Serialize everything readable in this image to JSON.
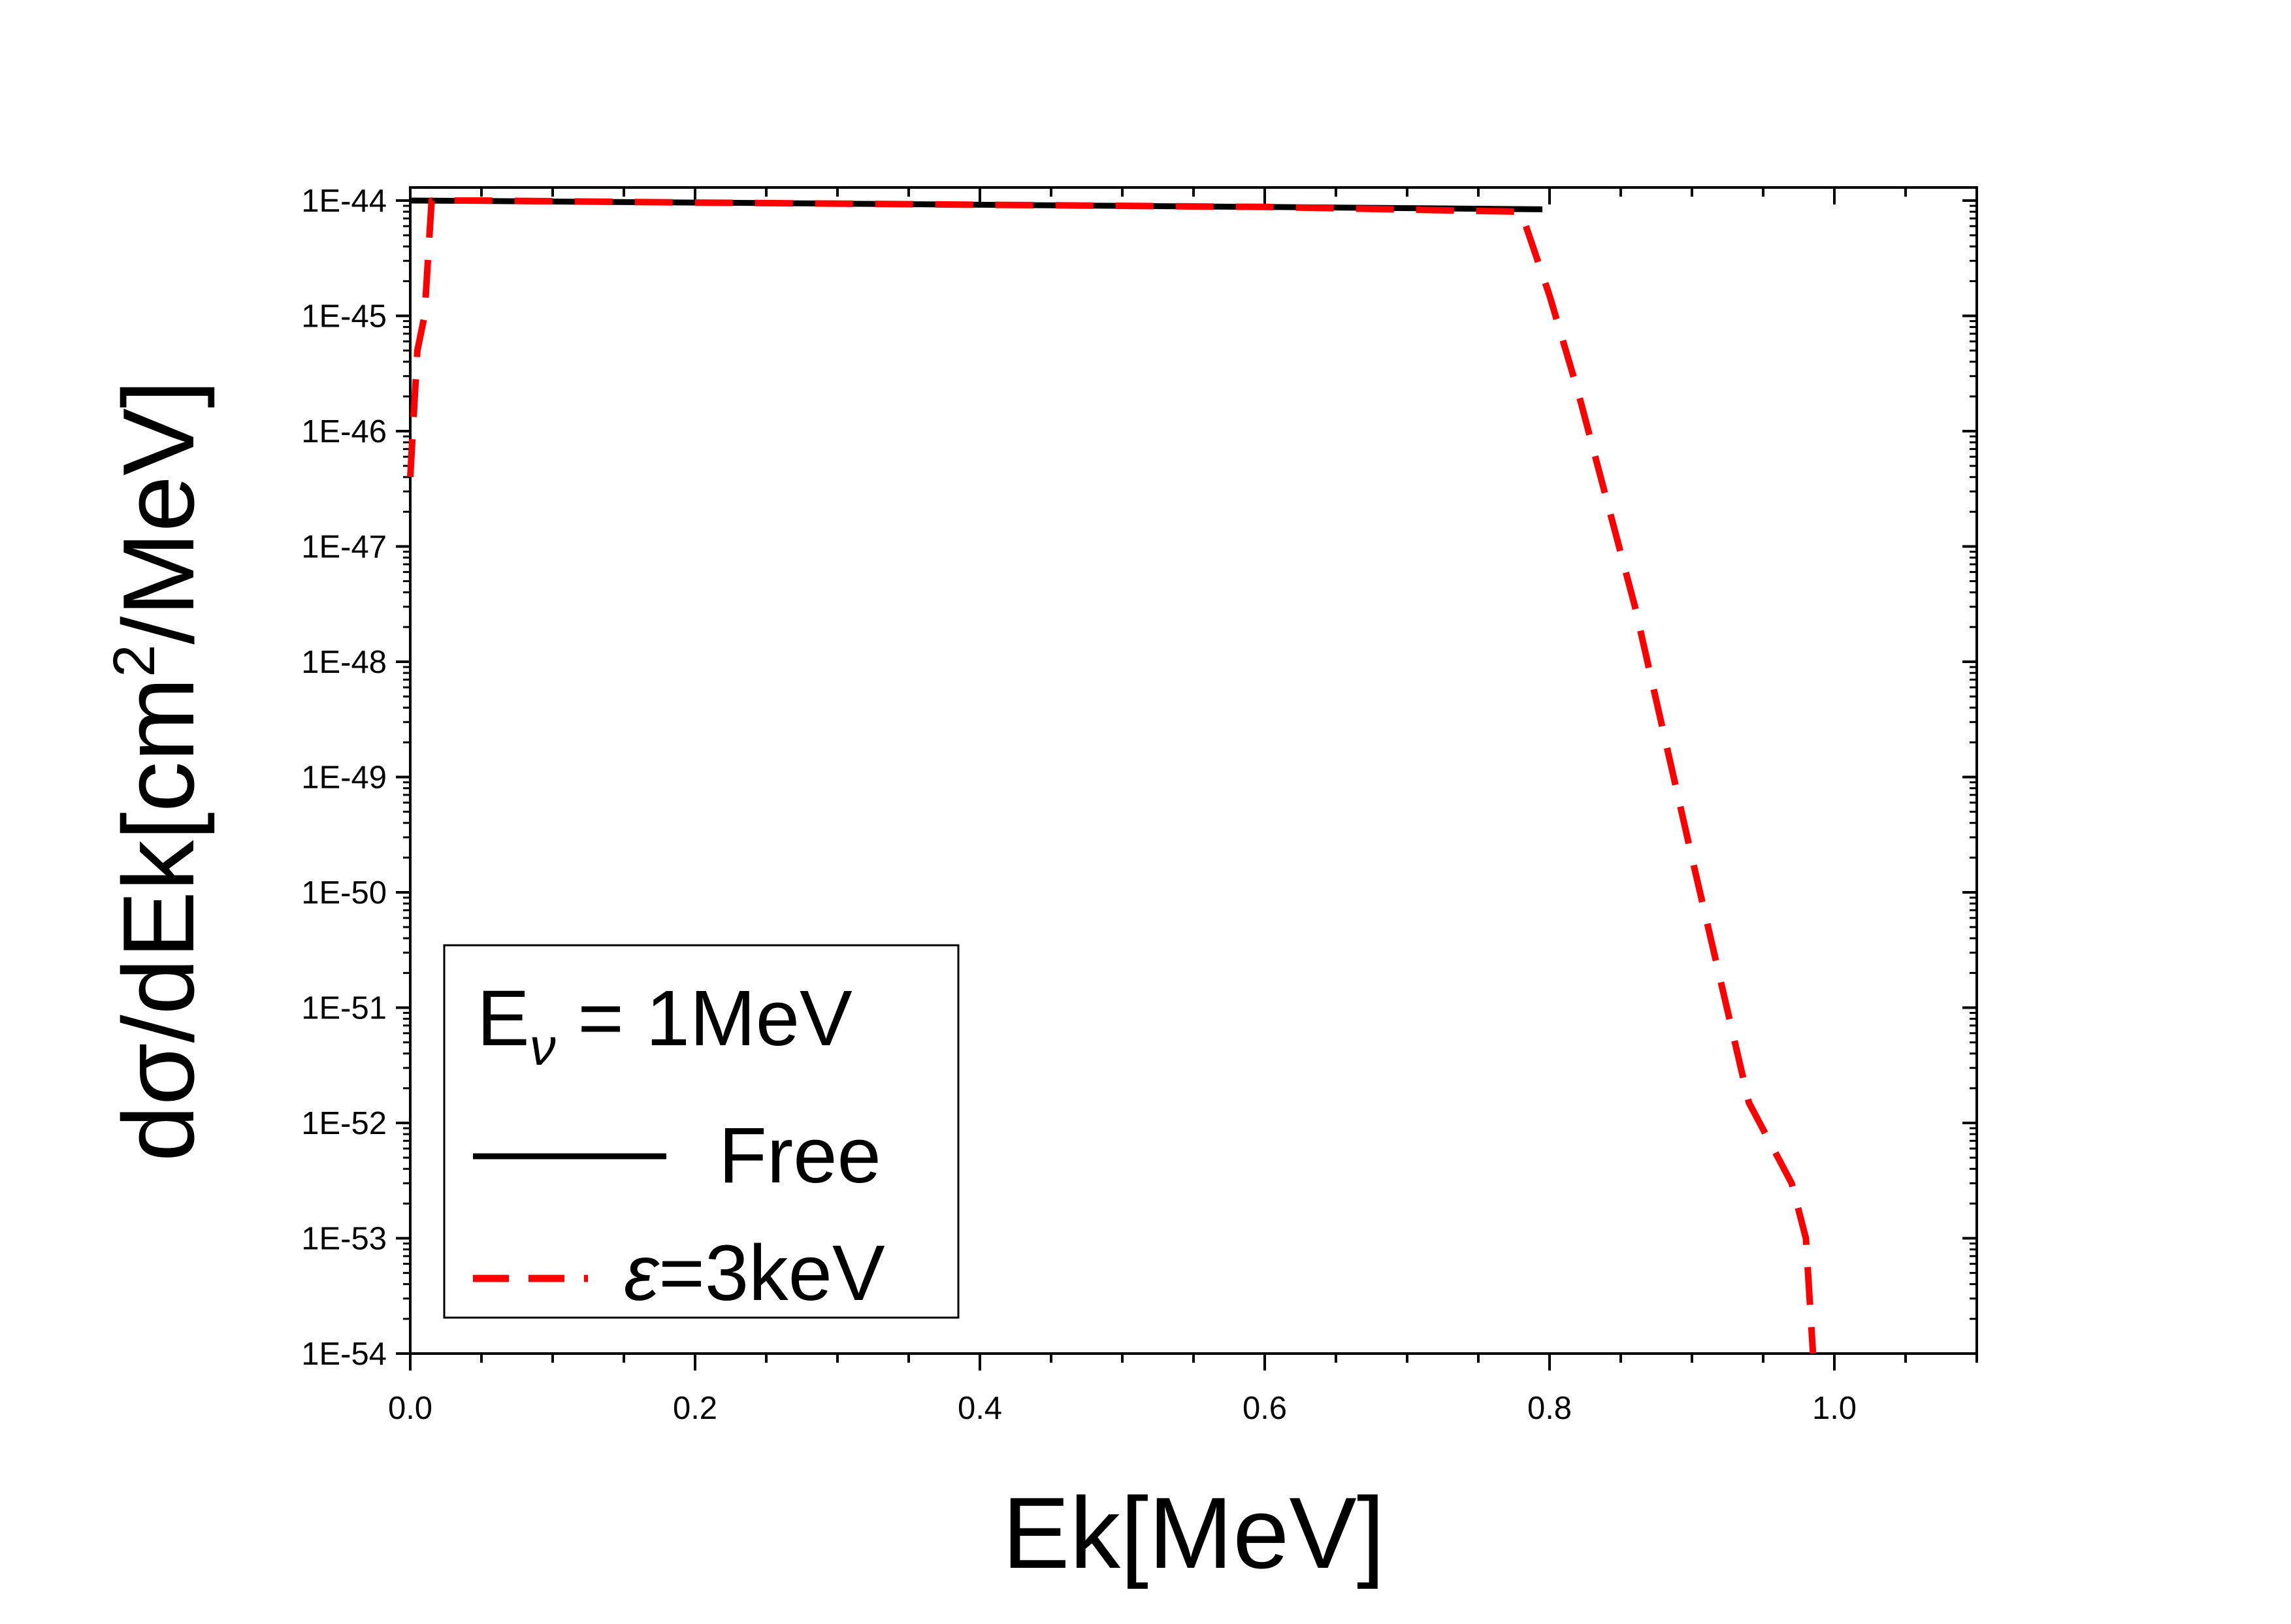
{
  "chart_data": {
    "type": "line",
    "xlabel": "Ek[MeV]",
    "ylabel": "dσ/dEk[cm²/MeV]",
    "ylabel_parts": {
      "main": "dσ/dEk[cm",
      "sup": "2",
      "tail": "/MeV]"
    },
    "xlim": [
      0.0,
      1.1
    ],
    "ylim_exponent": [
      -54,
      -44
    ],
    "yscale": "log",
    "x_ticks": [
      {
        "value": 0.0,
        "label": "0.0"
      },
      {
        "value": 0.2,
        "label": "0.2"
      },
      {
        "value": 0.4,
        "label": "0.4"
      },
      {
        "value": 0.6,
        "label": "0.6"
      },
      {
        "value": 0.8,
        "label": "0.8"
      },
      {
        "value": 1.0,
        "label": "1.0"
      }
    ],
    "y_ticks": [
      {
        "exponent": -44,
        "label": "1E-44"
      },
      {
        "exponent": -45,
        "label": "1E-45"
      },
      {
        "exponent": -46,
        "label": "1E-46"
      },
      {
        "exponent": -47,
        "label": "1E-47"
      },
      {
        "exponent": -48,
        "label": "1E-48"
      },
      {
        "exponent": -49,
        "label": "1E-49"
      },
      {
        "exponent": -50,
        "label": "1E-50"
      },
      {
        "exponent": -51,
        "label": "1E-51"
      },
      {
        "exponent": -52,
        "label": "1E-52"
      },
      {
        "exponent": -53,
        "label": "1E-53"
      },
      {
        "exponent": -54,
        "label": "1E-54"
      }
    ],
    "legend": {
      "title_main": "E",
      "title_sub": "ν",
      "title_tail": " = 1MeV",
      "placement": "bottom-left"
    },
    "series": [
      {
        "name": "Free",
        "label_prefix": "",
        "label_main": "Free",
        "color": "#000000",
        "style": "solid",
        "x": [
          0.0,
          0.1,
          0.2,
          0.3,
          0.4,
          0.5,
          0.6,
          0.7,
          0.795
        ],
        "y": [
          1e-44,
          9.8e-45,
          9.6e-45,
          9.4e-45,
          9.2e-45,
          9e-45,
          8.8e-45,
          8.6e-45,
          8.4e-45
        ]
      },
      {
        "name": "ε=3keV",
        "label_prefix": "ε",
        "label_main": "=3keV",
        "color": "#ff0000",
        "style": "dashed",
        "x": [
          0.0,
          0.005,
          0.01,
          0.015,
          0.05,
          0.2,
          0.4,
          0.6,
          0.78,
          0.8,
          0.82,
          0.86,
          0.9,
          0.94,
          0.97,
          0.98,
          0.985
        ],
        "y": [
          4e-47,
          5e-46,
          1e-45,
          1e-44,
          1e-44,
          9.6e-45,
          9.2e-45,
          8.8e-45,
          8e-45,
          1.5e-45,
          2.2e-46,
          3e-48,
          2e-50,
          1.5e-52,
          3e-53,
          1e-53,
          1e-54
        ]
      }
    ]
  }
}
